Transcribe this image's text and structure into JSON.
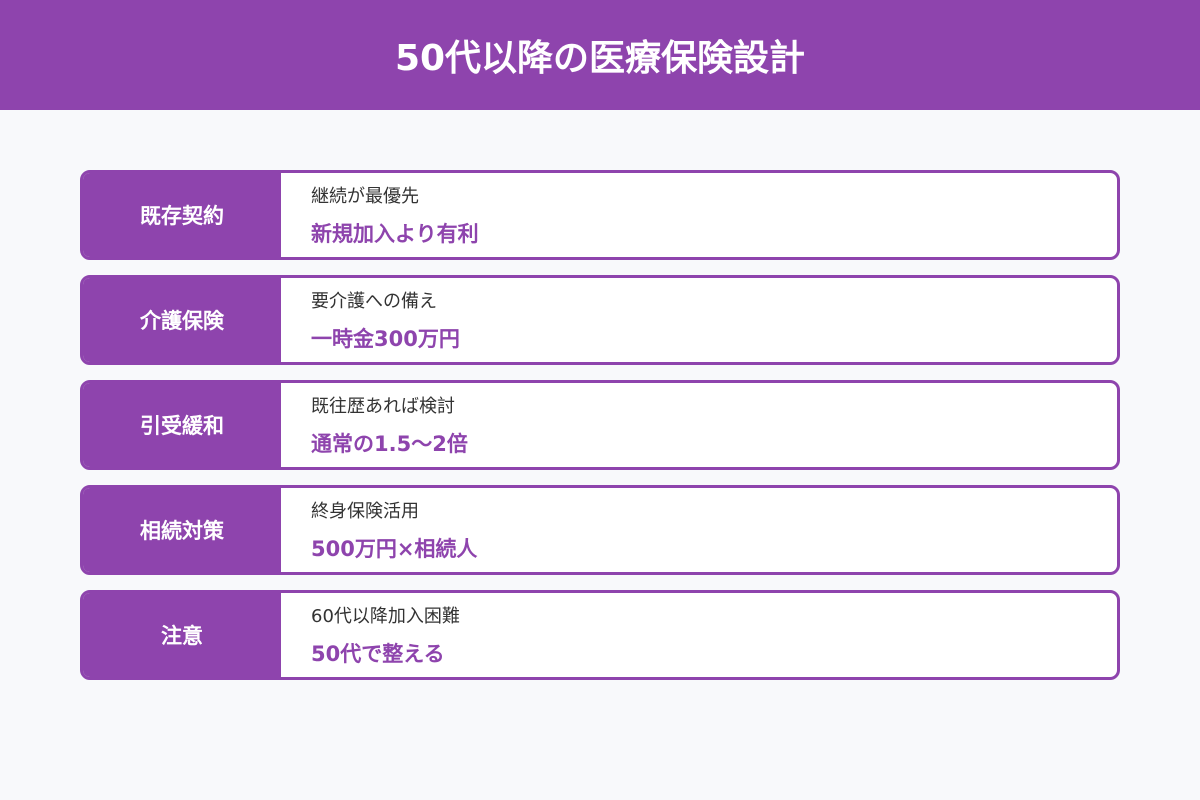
{
  "title": "50代以降の医療保険設計",
  "accent_color": "#8e44ad",
  "rows": [
    {
      "label": "既存契約",
      "sub": "継続が最優先",
      "main": "新規加入より有利"
    },
    {
      "label": "介護保険",
      "sub": "要介護への備え",
      "main": "一時金300万円"
    },
    {
      "label": "引受緩和",
      "sub": "既往歴あれば検討",
      "main": "通常の1.5〜2倍"
    },
    {
      "label": "相続対策",
      "sub": "終身保険活用",
      "main": "500万円×相続人"
    },
    {
      "label": "注意",
      "sub": "60代以降加入困難",
      "main": "50代で整える"
    }
  ]
}
